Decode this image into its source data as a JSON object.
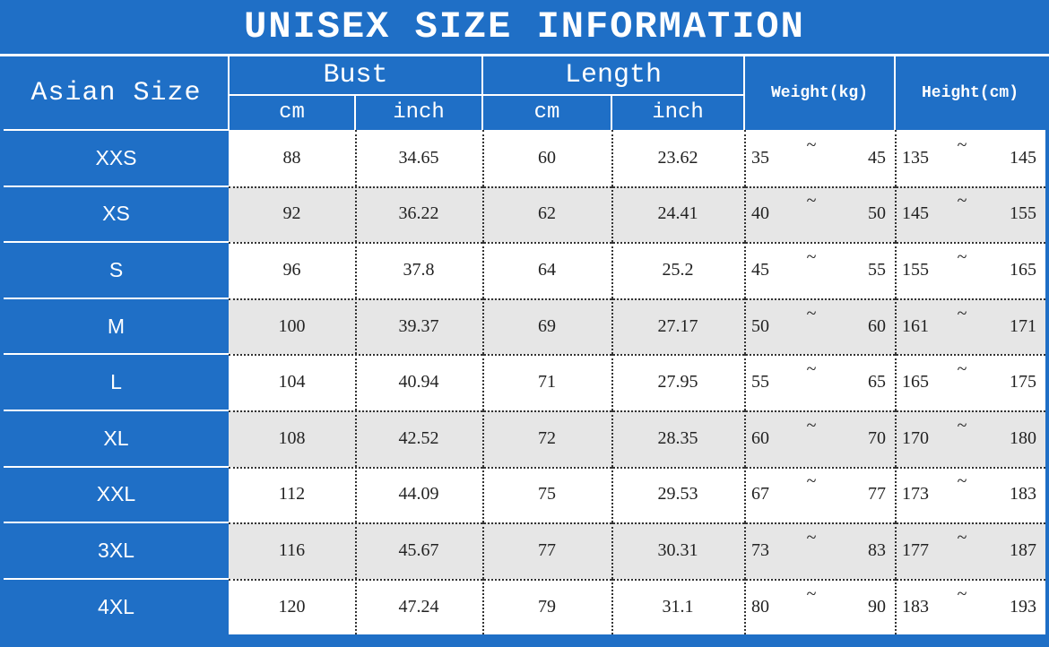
{
  "title": "UNISEX SIZE INFORMATION",
  "header": {
    "size": "Asian Size",
    "bust": "Bust",
    "length": "Length",
    "weight": "Weight(kg)",
    "height": "Height(cm)",
    "cm": "cm",
    "inch": "inch"
  },
  "range_separator": "~",
  "rows": [
    [
      "XXS",
      "88",
      "34.65",
      "60",
      "23.62",
      "35",
      "45",
      "135",
      "145"
    ],
    [
      "XS",
      "92",
      "36.22",
      "62",
      "24.41",
      "40",
      "50",
      "145",
      "155"
    ],
    [
      "S",
      "96",
      "37.8",
      "64",
      "25.2",
      "45",
      "55",
      "155",
      "165"
    ],
    [
      "M",
      "100",
      "39.37",
      "69",
      "27.17",
      "50",
      "60",
      "161",
      "171"
    ],
    [
      "L",
      "104",
      "40.94",
      "71",
      "27.95",
      "55",
      "65",
      "165",
      "175"
    ],
    [
      "XL",
      "108",
      "42.52",
      "72",
      "28.35",
      "60",
      "70",
      "170",
      "180"
    ],
    [
      "XXL",
      "112",
      "44.09",
      "75",
      "29.53",
      "67",
      "77",
      "173",
      "183"
    ],
    [
      "3XL",
      "116",
      "45.67",
      "77",
      "30.31",
      "73",
      "83",
      "177",
      "187"
    ],
    [
      "4XL",
      "120",
      "47.24",
      "79",
      "31.1",
      "80",
      "90",
      "183",
      "193"
    ]
  ]
}
